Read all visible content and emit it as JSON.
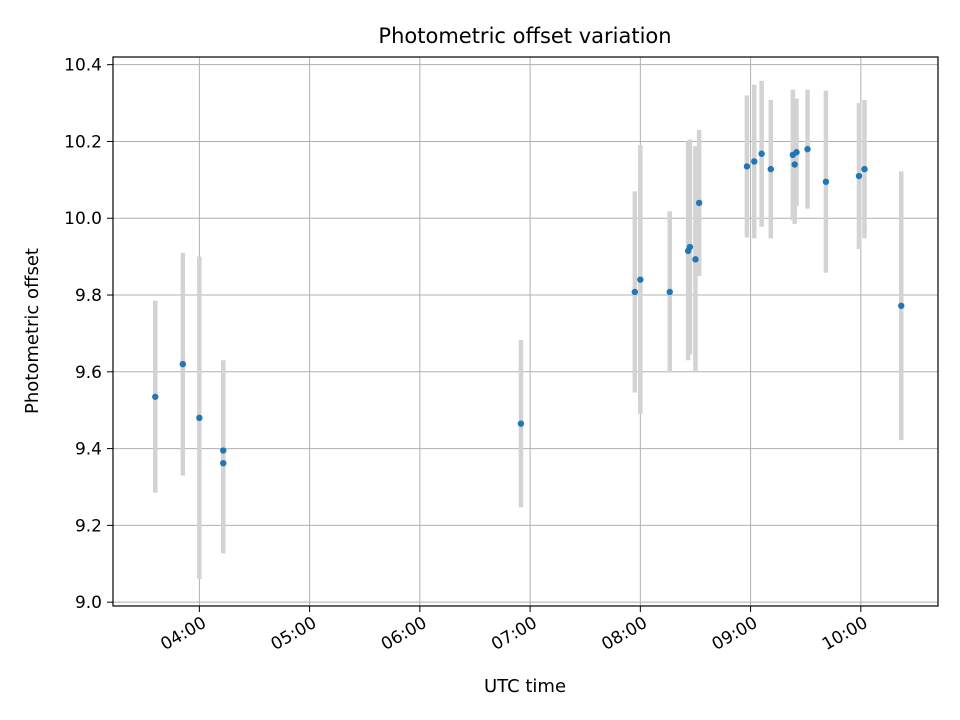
{
  "chart_data": {
    "type": "scatter",
    "title": "Photometric offset variation",
    "xlabel": "UTC time",
    "ylabel": "Photometric offset",
    "x_ticks": [
      "04:00",
      "05:00",
      "06:00",
      "07:00",
      "08:00",
      "09:00",
      "10:00"
    ],
    "y_ticks": [
      "9.0",
      "9.2",
      "9.4",
      "9.6",
      "9.8",
      "10.0",
      "10.2",
      "10.4"
    ],
    "xlim": [
      "03:13",
      "10:42"
    ],
    "ylim": [
      8.99,
      10.42
    ],
    "grid": true,
    "colors": {
      "point": "#1f77b4",
      "errorbar": "#d3d3d3",
      "grid": "#b0b0b0"
    },
    "series": [
      {
        "points": [
          {
            "x": "03:36",
            "y": 9.535,
            "yerr": 0.25
          },
          {
            "x": "03:51",
            "y": 9.62,
            "yerr": 0.29
          },
          {
            "x": "04:00",
            "y": 9.48,
            "yerr": 0.42
          },
          {
            "x": "04:13",
            "y": 9.395,
            "yerr": 0.235
          },
          {
            "x": "04:13",
            "y": 9.362,
            "yerr": 0.235
          },
          {
            "x": "06:55",
            "y": 9.465,
            "yerr": 0.218
          },
          {
            "x": "07:57",
            "y": 9.808,
            "yerr": 0.262
          },
          {
            "x": "08:00",
            "y": 9.84,
            "yerr": 0.35
          },
          {
            "x": "08:16",
            "y": 9.808,
            "yerr": 0.21
          },
          {
            "x": "08:26",
            "y": 9.915,
            "yerr": 0.285
          },
          {
            "x": "08:27",
            "y": 9.925,
            "yerr": 0.28
          },
          {
            "x": "08:30",
            "y": 9.893,
            "yerr": 0.295
          },
          {
            "x": "08:32",
            "y": 10.04,
            "yerr": 0.19
          },
          {
            "x": "08:58",
            "y": 10.135,
            "yerr": 0.185
          },
          {
            "x": "09:02",
            "y": 10.148,
            "yerr": 0.2
          },
          {
            "x": "09:06",
            "y": 10.168,
            "yerr": 0.19
          },
          {
            "x": "09:11",
            "y": 10.128,
            "yerr": 0.18
          },
          {
            "x": "09:23",
            "y": 10.165,
            "yerr": 0.17
          },
          {
            "x": "09:24",
            "y": 10.14,
            "yerr": 0.155
          },
          {
            "x": "09:25",
            "y": 10.172,
            "yerr": 0.14
          },
          {
            "x": "09:31",
            "y": 10.18,
            "yerr": 0.155
          },
          {
            "x": "09:41",
            "y": 10.095,
            "yerr": 0.237
          },
          {
            "x": "09:59",
            "y": 10.11,
            "yerr": 0.19
          },
          {
            "x": "10:02",
            "y": 10.128,
            "yerr": 0.18
          },
          {
            "x": "10:22",
            "y": 9.772,
            "yerr": 0.35
          }
        ]
      }
    ]
  }
}
